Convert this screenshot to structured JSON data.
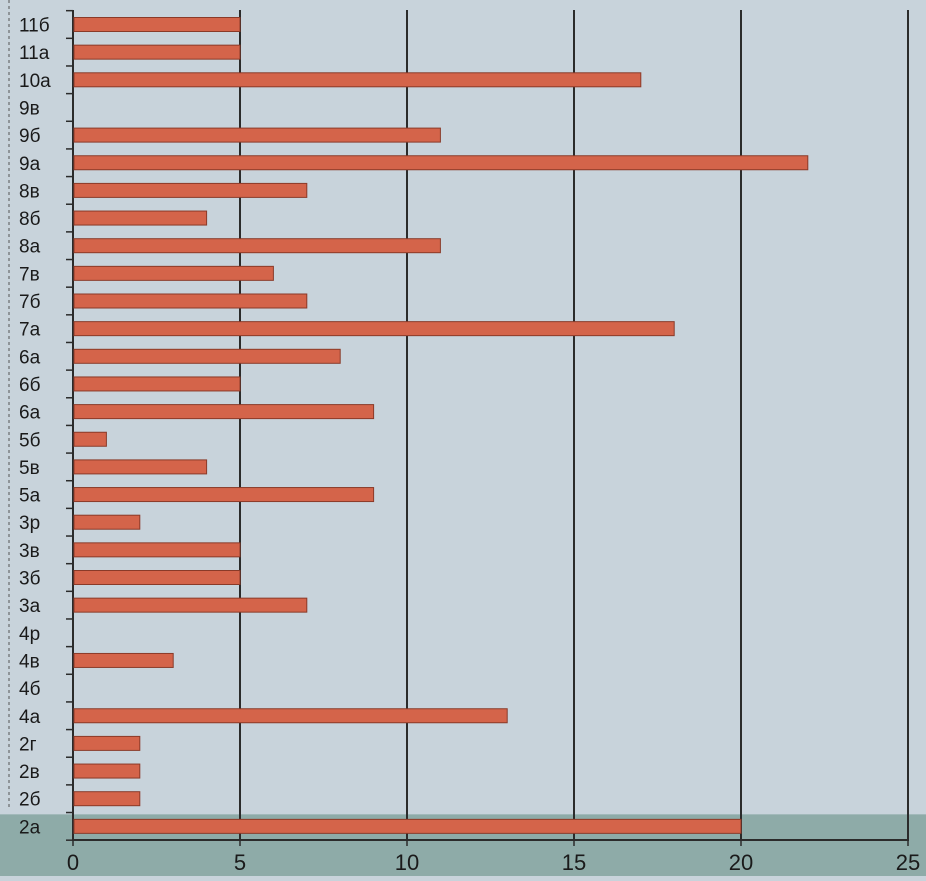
{
  "chart_data": {
    "type": "bar",
    "orientation": "horizontal",
    "title": "",
    "xlabel": "",
    "ylabel": "",
    "categories": [
      "11б",
      "11а",
      "10а",
      "9в",
      "9б",
      "9а",
      "8в",
      "8б",
      "8а",
      "7в",
      "7б",
      "7а",
      "6а",
      "6б",
      "6а",
      "5б",
      "5в",
      "5а",
      "3р",
      "3в",
      "3б",
      "3а",
      "4р",
      "4в",
      "4б",
      "4а",
      "2г",
      "2в",
      "2б",
      "2а"
    ],
    "values": [
      5,
      5,
      17,
      0,
      11,
      22,
      7,
      4,
      11,
      6,
      7,
      18,
      8,
      5,
      9,
      1,
      4,
      9,
      2,
      5,
      5,
      7,
      0,
      3,
      0,
      13,
      2,
      2,
      2,
      20
    ],
    "xlim": [
      0,
      25
    ],
    "xticks": [
      0,
      5,
      10,
      15,
      20,
      25
    ],
    "grid": true,
    "highlighted_category_index": 29,
    "colors": {
      "background": "#c8d3db",
      "bar_fill": "#d4644a",
      "bar_stroke": "#8a3a28",
      "grid": "#2b2b2b",
      "highlight_band": "#8eaba8",
      "text": "#1a1a1a"
    }
  }
}
